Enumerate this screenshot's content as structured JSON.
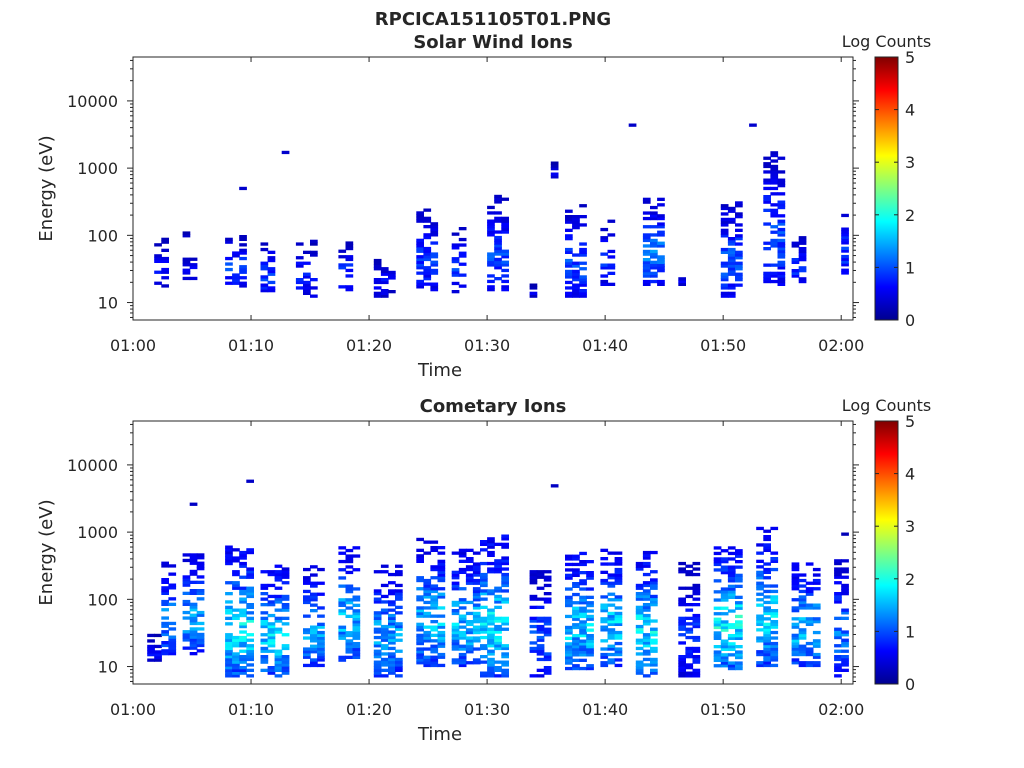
{
  "figure": {
    "title": "RPCICA151105T01.PNG"
  },
  "colormap": {
    "stops": [
      "#00008f",
      "#0000ff",
      "#0080ff",
      "#00ffff",
      "#80ff80",
      "#ffff00",
      "#ff8000",
      "#ff0000",
      "#800000"
    ]
  },
  "chart_data": [
    {
      "type": "heatmap",
      "title": "Solar Wind Ions",
      "xlabel": "Time",
      "ylabel": "Energy (eV)",
      "x_ticks": [
        "01:00",
        "01:10",
        "01:20",
        "01:30",
        "01:40",
        "01:50",
        "02:00"
      ],
      "x_range_minutes": [
        0,
        61
      ],
      "y_scale": "log",
      "y_ticks": [
        10,
        100,
        1000,
        10000
      ],
      "y_range": [
        5.5,
        45000
      ],
      "colorbar": {
        "label": "Log Counts",
        "range": [
          0,
          5
        ],
        "ticks": [
          0,
          1,
          2,
          3,
          4,
          5
        ]
      },
      "clusters": [
        {
          "t": 2.0,
          "e_min": 17,
          "e_max": 90,
          "w": 0.7,
          "inten": 0.6,
          "dens": 0.45
        },
        {
          "t": 4.0,
          "e_min": 95,
          "e_max": 105,
          "w": 0.2,
          "inten": 0.5,
          "dens": 0.6
        },
        {
          "t": 4.5,
          "e_min": 22,
          "e_max": 45,
          "w": 0.8,
          "inten": 0.7,
          "dens": 0.5
        },
        {
          "t": 8.2,
          "e_min": 17,
          "e_max": 95,
          "w": 1.2,
          "inten": 0.9,
          "dens": 0.55
        },
        {
          "t": 9.0,
          "e_min": 480,
          "e_max": 520,
          "w": 0.2,
          "inten": 0.5,
          "dens": 0.8
        },
        {
          "t": 11.3,
          "e_min": 12,
          "e_max": 95,
          "w": 1.0,
          "inten": 0.8,
          "dens": 0.45
        },
        {
          "t": 12.4,
          "e_min": 1650,
          "e_max": 1800,
          "w": 0.2,
          "inten": 0.5,
          "dens": 0.8
        },
        {
          "t": 14.5,
          "e_min": 12,
          "e_max": 85,
          "w": 1.5,
          "inten": 0.7,
          "dens": 0.4
        },
        {
          "t": 18.0,
          "e_min": 15,
          "e_max": 80,
          "w": 1.0,
          "inten": 0.8,
          "dens": 0.5
        },
        {
          "t": 20.5,
          "e_min": 12,
          "e_max": 45,
          "w": 0.8,
          "inten": 0.6,
          "dens": 0.4
        },
        {
          "t": 22.0,
          "e_min": 14,
          "e_max": 40,
          "w": 0.5,
          "inten": 0.6,
          "dens": 0.4
        },
        {
          "t": 24.3,
          "e_min": 15,
          "e_max": 250,
          "w": 1.2,
          "inten": 0.8,
          "dens": 0.45
        },
        {
          "t": 27.5,
          "e_min": 14,
          "e_max": 130,
          "w": 1.0,
          "inten": 0.8,
          "dens": 0.5
        },
        {
          "t": 30.5,
          "e_min": 15,
          "e_max": 400,
          "w": 1.4,
          "inten": 0.9,
          "dens": 0.5
        },
        {
          "t": 34.0,
          "e_min": 12,
          "e_max": 18,
          "w": 0.3,
          "inten": 0.5,
          "dens": 0.6
        },
        {
          "t": 35.5,
          "e_min": 650,
          "e_max": 1150,
          "w": 0.3,
          "inten": 0.5,
          "dens": 0.6
        },
        {
          "t": 37.2,
          "e_min": 12,
          "e_max": 280,
          "w": 1.6,
          "inten": 0.9,
          "dens": 0.5
        },
        {
          "t": 40.3,
          "e_min": 18,
          "e_max": 170,
          "w": 1.0,
          "inten": 0.8,
          "dens": 0.45
        },
        {
          "t": 42.2,
          "e_min": 4200,
          "e_max": 4700,
          "w": 0.2,
          "inten": 0.5,
          "dens": 0.8
        },
        {
          "t": 43.8,
          "e_min": 18,
          "e_max": 350,
          "w": 1.3,
          "inten": 1.1,
          "dens": 0.55
        },
        {
          "t": 46.5,
          "e_min": 18,
          "e_max": 24,
          "w": 0.3,
          "inten": 0.5,
          "dens": 0.6
        },
        {
          "t": 50.3,
          "e_min": 12,
          "e_max": 300,
          "w": 1.6,
          "inten": 1.0,
          "dens": 0.55
        },
        {
          "t": 52.3,
          "e_min": 4200,
          "e_max": 4700,
          "w": 0.2,
          "inten": 0.5,
          "dens": 0.8
        },
        {
          "t": 53.8,
          "e_min": 18,
          "e_max": 1900,
          "w": 1.2,
          "inten": 0.9,
          "dens": 0.45
        },
        {
          "t": 56.5,
          "e_min": 18,
          "e_max": 95,
          "w": 1.1,
          "inten": 0.8,
          "dens": 0.5
        },
        {
          "t": 59.9,
          "e_min": 22,
          "e_max": 300,
          "w": 0.3,
          "inten": 0.8,
          "dens": 0.6
        }
      ]
    },
    {
      "type": "heatmap",
      "title": "Cometary Ions",
      "xlabel": "Time",
      "ylabel": "Energy (eV)",
      "x_ticks": [
        "01:00",
        "01:10",
        "01:20",
        "01:30",
        "01:40",
        "01:50",
        "02:00"
      ],
      "x_range_minutes": [
        0,
        61
      ],
      "y_scale": "log",
      "y_ticks": [
        10,
        100,
        1000,
        10000
      ],
      "y_range": [
        5.5,
        45000
      ],
      "colorbar": {
        "label": "Log Counts",
        "range": [
          0,
          5
        ],
        "ticks": [
          0,
          1,
          2,
          3,
          4,
          5
        ]
      },
      "clusters": [
        {
          "t": 1.8,
          "e_min": 12,
          "e_max": 28,
          "w": 1.0,
          "inten": 0.6,
          "dens": 0.8
        },
        {
          "t": 2.8,
          "e_min": 15,
          "e_max": 350,
          "w": 0.7,
          "inten": 1.2,
          "dens": 0.55
        },
        {
          "t": 4.8,
          "e_min": 2500,
          "e_max": 2700,
          "w": 0.2,
          "inten": 0.5,
          "dens": 0.8
        },
        {
          "t": 5.2,
          "e_min": 15,
          "e_max": 450,
          "w": 1.6,
          "inten": 1.3,
          "dens": 0.55
        },
        {
          "t": 8.5,
          "e_min": 7,
          "e_max": 600,
          "w": 1.8,
          "inten": 1.6,
          "dens": 0.6
        },
        {
          "t": 9.8,
          "e_min": 5500,
          "e_max": 6000,
          "w": 0.2,
          "inten": 0.5,
          "dens": 0.8
        },
        {
          "t": 11.8,
          "e_min": 7,
          "e_max": 320,
          "w": 1.8,
          "inten": 1.5,
          "dens": 0.55
        },
        {
          "t": 15.3,
          "e_min": 10,
          "e_max": 300,
          "w": 1.3,
          "inten": 1.3,
          "dens": 0.55
        },
        {
          "t": 18.0,
          "e_min": 12,
          "e_max": 600,
          "w": 1.6,
          "inten": 1.4,
          "dens": 0.55
        },
        {
          "t": 21.5,
          "e_min": 7,
          "e_max": 320,
          "w": 2.2,
          "inten": 1.3,
          "dens": 0.55
        },
        {
          "t": 24.8,
          "e_min": 10,
          "e_max": 800,
          "w": 2.0,
          "inten": 1.4,
          "dens": 0.55
        },
        {
          "t": 27.8,
          "e_min": 10,
          "e_max": 550,
          "w": 1.9,
          "inten": 1.4,
          "dens": 0.55
        },
        {
          "t": 30.8,
          "e_min": 7,
          "e_max": 900,
          "w": 2.3,
          "inten": 1.6,
          "dens": 0.55
        },
        {
          "t": 34.0,
          "e_min": 7,
          "e_max": 250,
          "w": 1.4,
          "inten": 0.9,
          "dens": 0.4
        },
        {
          "t": 35.4,
          "e_min": 4700,
          "e_max": 5000,
          "w": 0.2,
          "inten": 0.5,
          "dens": 0.8
        },
        {
          "t": 37.3,
          "e_min": 9,
          "e_max": 550,
          "w": 2.0,
          "inten": 1.5,
          "dens": 0.55
        },
        {
          "t": 40.3,
          "e_min": 10,
          "e_max": 550,
          "w": 1.6,
          "inten": 1.5,
          "dens": 0.55
        },
        {
          "t": 43.5,
          "e_min": 7,
          "e_max": 500,
          "w": 1.6,
          "inten": 1.6,
          "dens": 0.55
        },
        {
          "t": 46.8,
          "e_min": 7,
          "e_max": 350,
          "w": 1.3,
          "inten": 0.8,
          "dens": 0.45
        },
        {
          "t": 50.3,
          "e_min": 9,
          "e_max": 600,
          "w": 2.3,
          "inten": 1.7,
          "dens": 0.6
        },
        {
          "t": 53.8,
          "e_min": 10,
          "e_max": 1100,
          "w": 1.6,
          "inten": 1.5,
          "dens": 0.55
        },
        {
          "t": 56.6,
          "e_min": 10,
          "e_max": 350,
          "w": 1.8,
          "inten": 1.4,
          "dens": 0.55
        },
        {
          "t": 59.7,
          "e_min": 7,
          "e_max": 400,
          "w": 1.0,
          "inten": 1.1,
          "dens": 0.6
        },
        {
          "t": 60.3,
          "e_min": 900,
          "e_max": 950,
          "w": 0.2,
          "inten": 0.5,
          "dens": 0.8
        }
      ]
    }
  ]
}
